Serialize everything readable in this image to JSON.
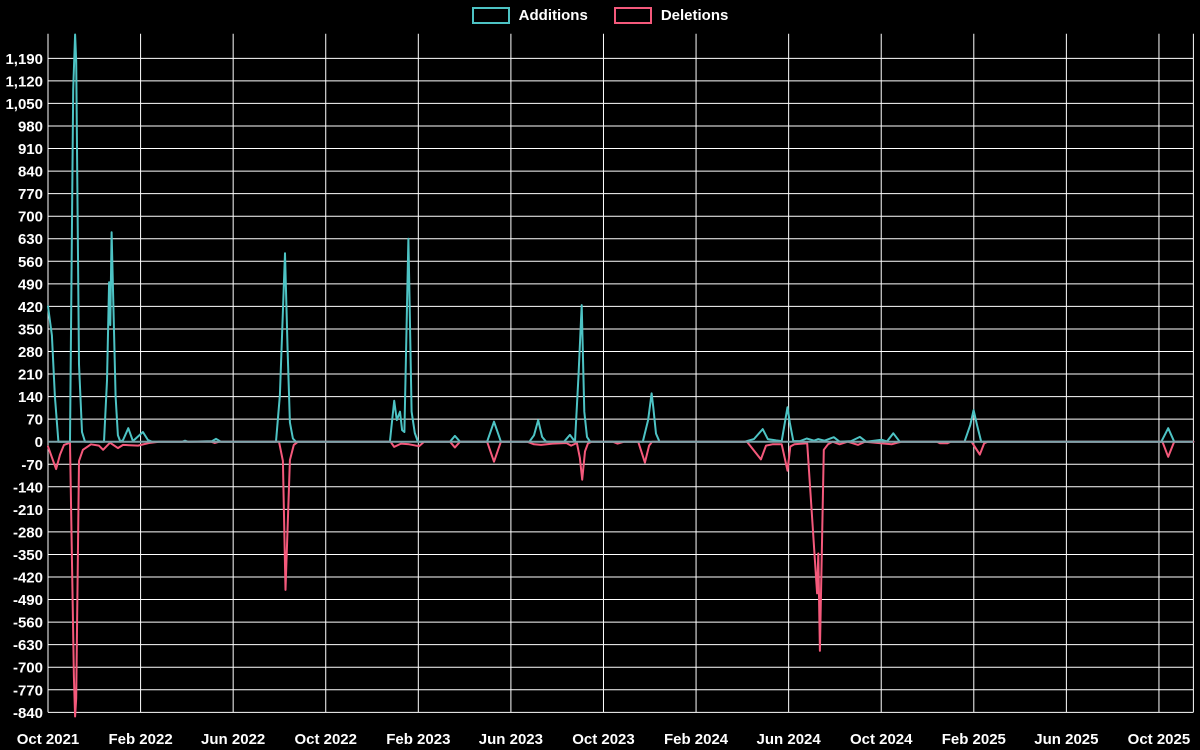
{
  "legend": {
    "items": [
      {
        "label": "Additions",
        "color": "#4dc3c4"
      },
      {
        "label": "Deletions",
        "color": "#f4597b"
      }
    ]
  },
  "chart_data": {
    "type": "line",
    "title": "",
    "xlabel": "",
    "ylabel": "",
    "grid": "on",
    "legend_position": "top-center",
    "colors": {
      "background": "#000000",
      "grid_lines": "#ffffff",
      "tick_text": "#ffffff",
      "additions_line": "#4dc3c4",
      "deletions_line": "#f4597b",
      "zero_baseline": "#7ba2a8"
    },
    "x_axis": {
      "unit": "months since Oct 2021",
      "tick_labels": [
        "Oct 2021",
        "Feb 2022",
        "Jun 2022",
        "Oct 2022",
        "Feb 2023",
        "Jun 2023",
        "Oct 2023",
        "Feb 2024",
        "Jun 2024",
        "Oct 2024",
        "Feb 2025",
        "Jun 2025",
        "Oct 2025"
      ],
      "tick_interval_months": 4,
      "range_months": [
        0,
        49.5
      ]
    },
    "y_axis": {
      "tick_min": -840,
      "tick_max": 1190,
      "tick_step": 70,
      "range": [
        -855,
        1266
      ]
    },
    "series": [
      {
        "name": "Additions",
        "color": "#4dc3c4",
        "points": [
          [
            0,
            420
          ],
          [
            0.17,
            330
          ],
          [
            0.3,
            140
          ],
          [
            0.45,
            0
          ],
          [
            0.95,
            0
          ],
          [
            1.09,
            1093
          ],
          [
            1.17,
            1264
          ],
          [
            1.22,
            1181
          ],
          [
            1.34,
            240
          ],
          [
            1.47,
            30
          ],
          [
            1.6,
            0
          ],
          [
            2.42,
            0
          ],
          [
            2.55,
            190
          ],
          [
            2.64,
            495
          ],
          [
            2.69,
            362
          ],
          [
            2.75,
            650
          ],
          [
            2.92,
            140
          ],
          [
            3.02,
            20
          ],
          [
            3.13,
            0
          ],
          [
            3.24,
            5
          ],
          [
            3.47,
            42
          ],
          [
            3.67,
            2
          ],
          [
            4.1,
            30
          ],
          [
            4.32,
            5
          ],
          [
            4.49,
            0
          ],
          [
            5.8,
            0
          ],
          [
            5.92,
            3
          ],
          [
            6.05,
            0
          ],
          [
            7.09,
            2
          ],
          [
            7.26,
            9
          ],
          [
            7.47,
            0
          ],
          [
            9.85,
            0
          ],
          [
            10.02,
            145
          ],
          [
            10.24,
            585
          ],
          [
            10.35,
            285
          ],
          [
            10.45,
            60
          ],
          [
            10.58,
            10
          ],
          [
            10.71,
            0
          ],
          [
            14.77,
            0
          ],
          [
            14.96,
            127
          ],
          [
            15.07,
            67
          ],
          [
            15.21,
            93
          ],
          [
            15.3,
            36
          ],
          [
            15.4,
            30
          ],
          [
            15.57,
            630
          ],
          [
            15.71,
            93
          ],
          [
            15.85,
            27
          ],
          [
            15.98,
            0
          ],
          [
            17.37,
            0
          ],
          [
            17.58,
            18
          ],
          [
            17.8,
            0
          ],
          [
            18.97,
            0
          ],
          [
            19.27,
            62
          ],
          [
            19.57,
            0
          ],
          [
            20.8,
            0
          ],
          [
            21.0,
            20
          ],
          [
            21.18,
            67
          ],
          [
            21.35,
            15
          ],
          [
            21.52,
            0
          ],
          [
            22.3,
            0
          ],
          [
            22.55,
            21
          ],
          [
            22.77,
            0
          ],
          [
            22.92,
            205
          ],
          [
            23.06,
            424
          ],
          [
            23.17,
            93
          ],
          [
            23.29,
            15
          ],
          [
            23.42,
            0
          ],
          [
            25.7,
            0
          ],
          [
            25.93,
            67
          ],
          [
            26.08,
            150
          ],
          [
            26.15,
            109
          ],
          [
            26.27,
            25
          ],
          [
            26.42,
            0
          ],
          [
            30.1,
            0
          ],
          [
            30.5,
            8
          ],
          [
            30.88,
            39
          ],
          [
            31.1,
            8
          ],
          [
            31.45,
            4
          ],
          [
            31.7,
            2
          ],
          [
            31.95,
            107
          ],
          [
            32.05,
            59
          ],
          [
            32.2,
            2
          ],
          [
            32.5,
            2
          ],
          [
            32.78,
            10
          ],
          [
            33.1,
            3
          ],
          [
            33.28,
            8
          ],
          [
            33.55,
            3
          ],
          [
            33.95,
            14
          ],
          [
            34.2,
            0
          ],
          [
            34.7,
            2
          ],
          [
            35.08,
            15
          ],
          [
            35.35,
            0
          ],
          [
            36.03,
            6
          ],
          [
            36.25,
            1
          ],
          [
            36.52,
            26
          ],
          [
            36.8,
            0
          ],
          [
            39.6,
            0
          ],
          [
            39.85,
            52
          ],
          [
            39.99,
            98
          ],
          [
            40.14,
            52
          ],
          [
            40.32,
            0
          ],
          [
            48.1,
            0
          ],
          [
            48.4,
            42
          ],
          [
            48.66,
            0
          ],
          [
            49.49,
            0
          ]
        ]
      },
      {
        "name": "Deletions",
        "color": "#f4597b",
        "points": [
          [
            0,
            -15
          ],
          [
            0.35,
            -85
          ],
          [
            0.52,
            -40
          ],
          [
            0.69,
            -10
          ],
          [
            0.95,
            -3
          ],
          [
            1.12,
            -730
          ],
          [
            1.17,
            -853
          ],
          [
            1.22,
            -797
          ],
          [
            1.34,
            -60
          ],
          [
            1.51,
            -25
          ],
          [
            1.86,
            -8
          ],
          [
            2.2,
            -12
          ],
          [
            2.38,
            -25
          ],
          [
            2.68,
            -3
          ],
          [
            3.02,
            -20
          ],
          [
            3.24,
            -10
          ],
          [
            3.89,
            -12
          ],
          [
            4.36,
            -4
          ],
          [
            4.8,
            0
          ],
          [
            7.05,
            0
          ],
          [
            7.2,
            -4
          ],
          [
            7.4,
            0
          ],
          [
            9.98,
            0
          ],
          [
            10.15,
            -60
          ],
          [
            10.26,
            -460
          ],
          [
            10.45,
            -57
          ],
          [
            10.62,
            -10
          ],
          [
            10.8,
            0
          ],
          [
            14.8,
            0
          ],
          [
            14.96,
            -16
          ],
          [
            15.25,
            -6
          ],
          [
            15.6,
            -8
          ],
          [
            16.03,
            -14
          ],
          [
            16.25,
            0
          ],
          [
            17.37,
            0
          ],
          [
            17.58,
            -18
          ],
          [
            17.8,
            0
          ],
          [
            18.97,
            0
          ],
          [
            19.27,
            -62
          ],
          [
            19.57,
            0
          ],
          [
            20.7,
            0
          ],
          [
            21.0,
            -8
          ],
          [
            21.3,
            -10
          ],
          [
            21.8,
            -6
          ],
          [
            22.4,
            -4
          ],
          [
            22.6,
            -12
          ],
          [
            22.85,
            -4
          ],
          [
            22.98,
            -51
          ],
          [
            23.08,
            -118
          ],
          [
            23.2,
            -30
          ],
          [
            23.33,
            -5
          ],
          [
            23.5,
            0
          ],
          [
            24.4,
            0
          ],
          [
            24.6,
            -6
          ],
          [
            24.9,
            0
          ],
          [
            25.5,
            0
          ],
          [
            25.79,
            -65
          ],
          [
            25.97,
            -12
          ],
          [
            26.1,
            0
          ],
          [
            30.2,
            0
          ],
          [
            30.8,
            -55
          ],
          [
            31.02,
            -12
          ],
          [
            31.3,
            -8
          ],
          [
            31.7,
            -8
          ],
          [
            31.95,
            -90
          ],
          [
            32.07,
            -15
          ],
          [
            32.25,
            -8
          ],
          [
            32.8,
            -5
          ],
          [
            33.23,
            -471
          ],
          [
            33.28,
            -347
          ],
          [
            33.35,
            -649
          ],
          [
            33.52,
            -25
          ],
          [
            33.7,
            -8
          ],
          [
            33.9,
            0
          ],
          [
            34.2,
            -8
          ],
          [
            34.55,
            0
          ],
          [
            35.0,
            -10
          ],
          [
            35.3,
            0
          ],
          [
            36.45,
            -8
          ],
          [
            36.7,
            -3
          ],
          [
            36.9,
            0
          ],
          [
            38.4,
            0
          ],
          [
            38.55,
            -5
          ],
          [
            38.85,
            -5
          ],
          [
            39.0,
            0
          ],
          [
            39.9,
            0
          ],
          [
            40.26,
            -40
          ],
          [
            40.45,
            -5
          ],
          [
            40.6,
            0
          ],
          [
            48.15,
            0
          ],
          [
            48.4,
            -47
          ],
          [
            48.66,
            0
          ],
          [
            49.49,
            0
          ]
        ]
      }
    ]
  }
}
